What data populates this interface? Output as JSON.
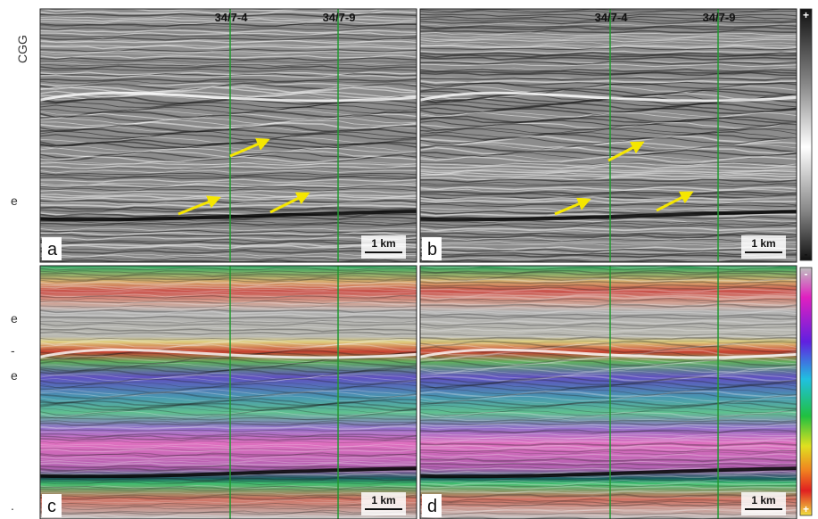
{
  "watermark": "CGG",
  "margin_text": [
    "e",
    "e",
    "-",
    "e",
    "."
  ],
  "panels": [
    {
      "label": "a",
      "wells": [
        "34/7-4",
        "34/7-9"
      ],
      "scale": "1 km"
    },
    {
      "label": "b",
      "wells": [
        "34/7-4",
        "34/7-9"
      ],
      "scale": "1 km"
    },
    {
      "label": "c",
      "scale": "1 km"
    },
    {
      "label": "d",
      "scale": "1 km"
    }
  ],
  "colorbars": [
    {
      "top": "+",
      "bottom": "-"
    },
    {
      "top": "-",
      "bottom": "+"
    }
  ]
}
